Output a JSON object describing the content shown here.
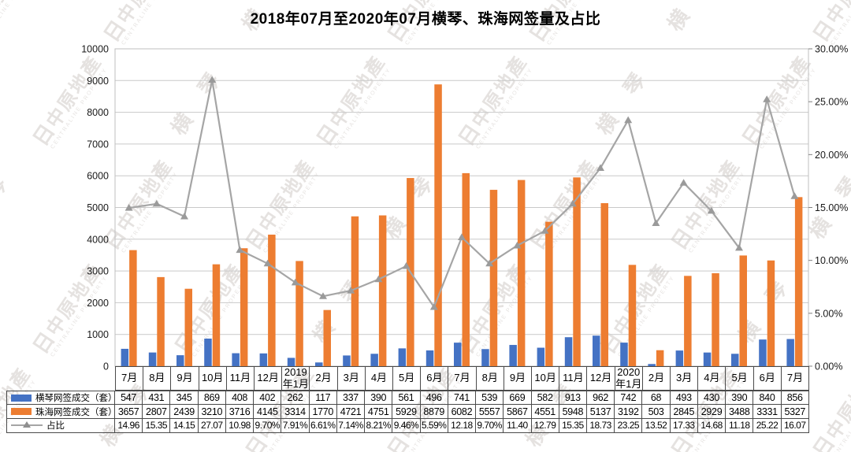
{
  "title": "2018年07月至2020年07月横琴、珠海网签量及占比",
  "watermark": {
    "brand_logo": "日",
    "brand": "中原地產",
    "brand_sub": "CENTRALINE PROPERTY",
    "side_text": "横 琴"
  },
  "chart_data": {
    "type": "bar+line",
    "title": "2018年07月至2020年07月横琴、珠海网签量及占比",
    "categories": [
      "7月",
      "8月",
      "9月",
      "10月",
      "11月",
      "12月",
      "2019年1月",
      "2月",
      "3月",
      "4月",
      "5月",
      "6月",
      "7月",
      "8月",
      "9月",
      "10月",
      "11月",
      "12月",
      "2020年1月",
      "2月",
      "3月",
      "4月",
      "5月",
      "6月",
      "7月"
    ],
    "series": [
      {
        "name": "横琴网签成交（套）",
        "type": "bar",
        "axis": "left",
        "color": "#4472C4",
        "values": [
          547,
          431,
          345,
          869,
          408,
          402,
          262,
          117,
          337,
          390,
          561,
          496,
          741,
          539,
          669,
          582,
          913,
          962,
          742,
          68,
          493,
          430,
          390,
          840,
          856
        ]
      },
      {
        "name": "珠海网签成交（套）",
        "type": "bar",
        "axis": "left",
        "color": "#ED7D31",
        "values": [
          3657,
          2807,
          2439,
          3210,
          3716,
          4145,
          3314,
          1770,
          4721,
          4751,
          5929,
          8879,
          6082,
          5557,
          5867,
          4551,
          5948,
          5137,
          3192,
          503,
          2845,
          2929,
          3488,
          3331,
          5327
        ]
      },
      {
        "name": "占比",
        "type": "line",
        "axis": "right",
        "color": "#A5A5A5",
        "values": [
          14.96,
          15.35,
          14.15,
          27.07,
          10.98,
          9.7,
          7.91,
          6.61,
          7.14,
          8.21,
          9.46,
          5.59,
          12.18,
          9.7,
          11.4,
          12.79,
          15.35,
          18.73,
          23.25,
          13.52,
          17.33,
          14.68,
          11.18,
          25.22,
          16.07
        ],
        "display": [
          "14.96",
          "15.35",
          "14.15",
          "27.07",
          "10.98",
          "9.70%",
          "7.91%",
          "6.61%",
          "7.14%",
          "8.21%",
          "9.46%",
          "5.59%",
          "12.18",
          "9.70%",
          "11.40",
          "12.79",
          "15.35",
          "18.73",
          "23.25",
          "13.52",
          "17.33",
          "14.68",
          "11.18",
          "25.22",
          "16.07"
        ]
      }
    ],
    "left_axis": {
      "min": 0,
      "max": 10000,
      "step": 1000
    },
    "right_axis": {
      "min": 0,
      "max": 30,
      "step": 5,
      "decimals": 2,
      "suffix": "%"
    },
    "grid": "horizontal",
    "legend_position": "table-left-column"
  }
}
